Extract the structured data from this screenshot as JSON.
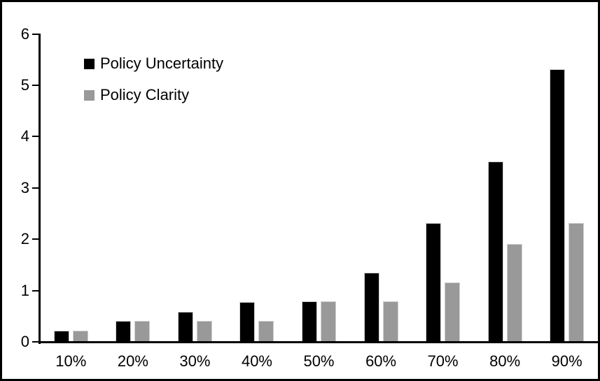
{
  "figure": {
    "background": "#ffffff",
    "frame_color": "#000000"
  },
  "chart_data": {
    "type": "bar",
    "title": "",
    "xlabel": "",
    "ylabel": "",
    "categories": [
      "10%",
      "20%",
      "30%",
      "40%",
      "50%",
      "60%",
      "70%",
      "80%",
      "90%"
    ],
    "series": [
      {
        "name": "Policy Uncertainty",
        "color": "#000000",
        "values": [
          0.2,
          0.39,
          0.57,
          0.76,
          0.78,
          1.33,
          2.3,
          3.5,
          5.3
        ]
      },
      {
        "name": "Policy Clarity",
        "color": "#999999",
        "values": [
          0.2,
          0.39,
          0.39,
          0.39,
          0.78,
          0.78,
          1.15,
          1.9,
          2.3
        ]
      }
    ],
    "ylim": [
      0,
      6
    ],
    "yticks": [
      "0",
      "1",
      "2",
      "3",
      "4",
      "5",
      "6"
    ],
    "grid": false,
    "legend_position": "upper-left-inside",
    "axis_color": "#000000",
    "text_color": "#000000"
  }
}
